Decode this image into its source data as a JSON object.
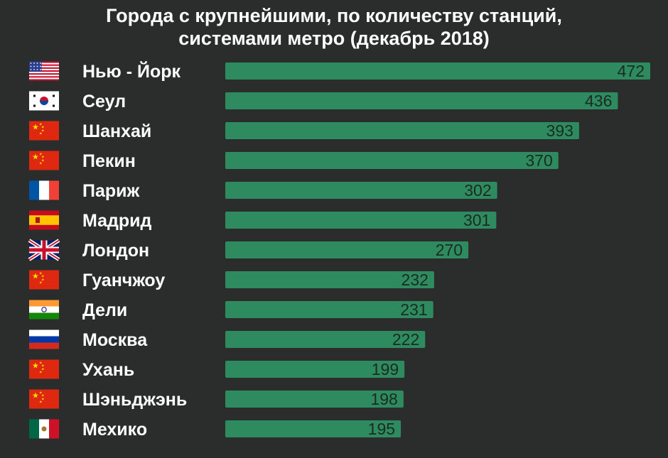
{
  "chart_data": {
    "type": "bar",
    "orientation": "horizontal",
    "title_lines": [
      "Города с крупнейшими, по количеству станций,",
      "системами метро (декабрь 2018)"
    ],
    "categories": [
      "Нью - Йорк",
      "Сеул",
      "Шанхай",
      "Пекин",
      "Париж",
      "Мадрид",
      "Лондон",
      "Гуанчжоу",
      "Дели",
      "Москва",
      "Ухань",
      "Шэньджэнь",
      "Мехико"
    ],
    "values": [
      472,
      436,
      393,
      370,
      302,
      301,
      270,
      232,
      231,
      222,
      199,
      198,
      195
    ],
    "flags": [
      "usa",
      "korea",
      "china",
      "china",
      "france",
      "spain",
      "uk",
      "china",
      "india",
      "russia",
      "china",
      "china",
      "mexico"
    ],
    "bar_color": "#2e8b5f",
    "background_color": "#2b2d2c",
    "value_label_color": "#1c2b22",
    "xlim": [
      0,
      472
    ],
    "grid": false,
    "legend": "none"
  }
}
